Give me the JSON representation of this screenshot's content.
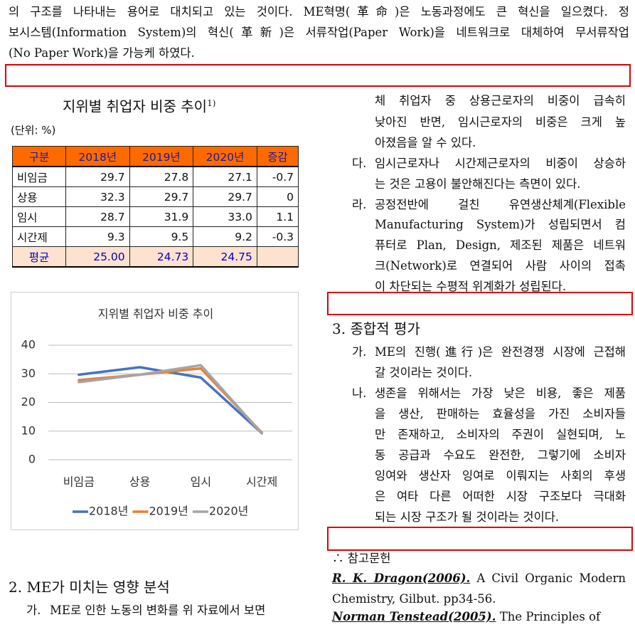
{
  "intro": [
    "의 구조를 나타내는 용어로 대치되고 있는 것이다. ME혁명(革命)은 노동과정에도 큰 혁신을 일으켰다. 정",
    "보시스템(Information System)의 혁신(革新)은 서류작업(Paper Work)을 네트워크로 대체하여 무서류작업",
    "(No Paper Work)을 가능케 하였다."
  ],
  "table_title": "지위별 취업자 비중 추이",
  "table_note": "1)",
  "unit": "(단위: %)",
  "table": {
    "header": [
      "구분",
      "2018년",
      "2019년",
      "2020년",
      "증감"
    ],
    "rows": [
      [
        "비임금",
        "29.7",
        "27.8",
        "27.1",
        "-0.7"
      ],
      [
        "상용",
        "32.3",
        "29.7",
        "29.7",
        "0"
      ],
      [
        "임시",
        "28.7",
        "31.9",
        "33.0",
        "1.1"
      ],
      [
        "시간제",
        "9.3",
        "9.5",
        "9.2",
        "-0.3"
      ],
      [
        "평균",
        "25.00",
        "24.73",
        "24.75",
        null
      ]
    ]
  },
  "chart_data": {
    "type": "line",
    "title": "지위별 취업자 비중 추이",
    "categories": [
      "비임금",
      "상용",
      "임시",
      "시간제"
    ],
    "series": [
      {
        "name": "2018년",
        "color": "#4472c4",
        "values": [
          29.7,
          32.3,
          28.7,
          9.3
        ]
      },
      {
        "name": "2019년",
        "color": "#ed7d31",
        "values": [
          27.8,
          29.7,
          31.9,
          9.5
        ]
      },
      {
        "name": "2020년",
        "color": "#a5a5a5",
        "values": [
          27.1,
          29.7,
          33.0,
          9.2
        ]
      }
    ],
    "ylim": [
      0,
      40
    ],
    "yticks": [
      0,
      10,
      20,
      30,
      40
    ],
    "grid": true,
    "legend": "bottom"
  },
  "section2": {
    "heading": "2. ME가 미치는 영향 분석",
    "items": [
      {
        "marker": "가.",
        "lines": [
          "ME로 인한 노동의 변화를 위 자료에서 보면"
        ]
      }
    ]
  },
  "right": {
    "continued": [
      "체 취업자 중 상용근로자의 비중이 급속히",
      "낮아진 반면, 임시근로자의 비중은 크게 높",
      "아졌음을 알 수 있다."
    ],
    "items": [
      {
        "marker": "다.",
        "lines": [
          "임시근로자나 시간제근로자의 비중이 상승하",
          "는 것은 고용이 불안해진다는 측면이 있다."
        ]
      },
      {
        "marker": "라.",
        "lines": [
          "공정전반에 걸친 유연생산체계(Flexible",
          "Manufacturing System)가 성립되면서 컴",
          "퓨터로 Plan, Design, 제조된 제품은 네트워",
          "크(Network)로 연결되어 사람 사이의 접촉",
          "이 차단되는 수평적 위계화가 성립된다."
        ]
      }
    ]
  },
  "section3": {
    "heading": "3. 종합적 평가",
    "items": [
      {
        "marker": "가.",
        "lines": [
          "ME의 진행(進行)은 완전경쟁 시장에 근접해",
          "갈 것이라는 것이다."
        ]
      },
      {
        "marker": "나.",
        "lines": [
          "생존을 위해서는 가장 낮은 비용, 좋은 제품",
          "을 생산, 판매하는 효율성을 가진 소비자들",
          "만 존재하고, 소비자의 주권이 실현되며, 노",
          "동 공급과 수요도 완전한, 그렇기에 소비자",
          "잉여와 생산자 잉여로 이뤄지는 사회의 후생",
          "은 여타 다른 어떠한 시장 구조보다 극대화",
          "되는 시장 구조가 될 것이라는 것이다."
        ]
      }
    ]
  },
  "references": {
    "heading": "∴ 참고문헌",
    "entries": [
      {
        "author": "R. K. Dragon(2006).",
        "lines": [
          " A Civil Organic Modern",
          "Chemistry, Gilbut. pp34-56."
        ]
      },
      {
        "author": "Norman Tenstead(2005).",
        "lines": [
          " The Principles of"
        ]
      }
    ]
  }
}
